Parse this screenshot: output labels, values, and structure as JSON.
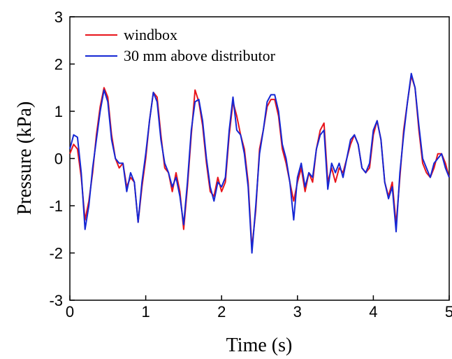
{
  "chart_data": {
    "type": "line",
    "xlabel": "Time (s)",
    "ylabel": "Pressure (kPa)",
    "xlim": [
      0,
      5
    ],
    "xticks": [
      0,
      1,
      2,
      3,
      4,
      5
    ],
    "ylim": [
      -3,
      3
    ],
    "yticks": [
      -3,
      -2,
      -1,
      0,
      1,
      2,
      3
    ],
    "legend": "upper left",
    "x": [
      0,
      0.05,
      0.1,
      0.15,
      0.2,
      0.25,
      0.3,
      0.35,
      0.4,
      0.45,
      0.5,
      0.55,
      0.6,
      0.65,
      0.7,
      0.75,
      0.8,
      0.85,
      0.9,
      0.95,
      1,
      1.05,
      1.1,
      1.15,
      1.2,
      1.25,
      1.3,
      1.35,
      1.4,
      1.45,
      1.5,
      1.55,
      1.6,
      1.65,
      1.7,
      1.75,
      1.8,
      1.85,
      1.9,
      1.95,
      2,
      2.05,
      2.1,
      2.15,
      2.2,
      2.25,
      2.3,
      2.35,
      2.4,
      2.45,
      2.5,
      2.55,
      2.6,
      2.65,
      2.7,
      2.75,
      2.8,
      2.85,
      2.9,
      2.95,
      3,
      3.05,
      3.1,
      3.15,
      3.2,
      3.25,
      3.3,
      3.35,
      3.4,
      3.45,
      3.5,
      3.55,
      3.6,
      3.65,
      3.7,
      3.75,
      3.8,
      3.85,
      3.9,
      3.95,
      4,
      4.05,
      4.1,
      4.15,
      4.2,
      4.25,
      4.3,
      4.35,
      4.4,
      4.45,
      4.5,
      4.55,
      4.6,
      4.65,
      4.7,
      4.75,
      4.8,
      4.85,
      4.9,
      4.95,
      5
    ],
    "series": [
      {
        "name": "windbox",
        "color": "#e8141b",
        "values": [
          0.1,
          0.3,
          0.2,
          -0.4,
          -1.3,
          -0.9,
          -0.3,
          0.5,
          1.1,
          1.5,
          1.3,
          0.5,
          0.0,
          -0.2,
          -0.1,
          -0.6,
          -0.4,
          -0.5,
          -1.35,
          -0.6,
          0.0,
          0.8,
          1.4,
          1.3,
          0.5,
          -0.2,
          -0.3,
          -0.7,
          -0.3,
          -0.7,
          -1.5,
          -0.6,
          0.5,
          1.45,
          1.2,
          0.7,
          -0.1,
          -0.7,
          -0.8,
          -0.4,
          -0.7,
          -0.5,
          0.5,
          1.2,
          0.9,
          0.5,
          0.2,
          -0.5,
          -1.9,
          -1.1,
          0.2,
          0.6,
          1.1,
          1.25,
          1.25,
          0.9,
          0.2,
          -0.1,
          -0.5,
          -0.9,
          -0.5,
          -0.2,
          -0.7,
          -0.3,
          -0.5,
          0.2,
          0.6,
          0.75,
          -0.5,
          -0.2,
          -0.5,
          -0.2,
          -0.3,
          0.0,
          0.3,
          0.5,
          0.3,
          -0.2,
          -0.3,
          -0.2,
          0.5,
          0.8,
          0.4,
          -0.5,
          -0.8,
          -0.5,
          -1.4,
          -0.4,
          0.6,
          1.2,
          1.75,
          1.5,
          0.6,
          -0.1,
          -0.3,
          -0.4,
          -0.2,
          0.1,
          0.1,
          -0.1,
          -0.4
        ]
      },
      {
        "name": "30 mm above distributor",
        "color": "#1527d4",
        "values": [
          0.2,
          0.5,
          0.45,
          -0.3,
          -1.5,
          -1.0,
          -0.2,
          0.4,
          1.0,
          1.45,
          1.2,
          0.4,
          0.0,
          -0.1,
          -0.1,
          -0.7,
          -0.3,
          -0.5,
          -1.35,
          -0.5,
          0.1,
          0.8,
          1.4,
          1.2,
          0.4,
          -0.1,
          -0.3,
          -0.6,
          -0.4,
          -0.8,
          -1.4,
          -0.5,
          0.6,
          1.2,
          1.25,
          0.8,
          0.0,
          -0.6,
          -0.9,
          -0.5,
          -0.6,
          -0.4,
          0.6,
          1.3,
          0.6,
          0.5,
          0.1,
          -0.6,
          -2.0,
          -1.0,
          0.1,
          0.6,
          1.2,
          1.35,
          1.35,
          1.0,
          0.3,
          0.0,
          -0.5,
          -1.3,
          -0.4,
          -0.1,
          -0.6,
          -0.3,
          -0.4,
          0.2,
          0.5,
          0.6,
          -0.65,
          -0.1,
          -0.3,
          -0.1,
          -0.4,
          0.0,
          0.4,
          0.5,
          0.3,
          -0.2,
          -0.3,
          -0.1,
          0.6,
          0.8,
          0.4,
          -0.5,
          -0.85,
          -0.6,
          -1.55,
          -0.3,
          0.5,
          1.2,
          1.8,
          1.5,
          0.7,
          0.0,
          -0.2,
          -0.4,
          -0.1,
          0.0,
          0.1,
          -0.2,
          -0.4
        ]
      }
    ]
  }
}
